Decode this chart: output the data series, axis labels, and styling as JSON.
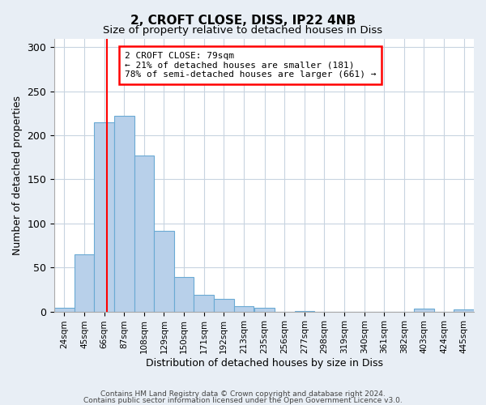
{
  "title": "2, CROFT CLOSE, DISS, IP22 4NB",
  "subtitle": "Size of property relative to detached houses in Diss",
  "xlabel": "Distribution of detached houses by size in Diss",
  "ylabel": "Number of detached properties",
  "bin_labels": [
    "24sqm",
    "45sqm",
    "66sqm",
    "87sqm",
    "108sqm",
    "129sqm",
    "150sqm",
    "171sqm",
    "192sqm",
    "213sqm",
    "235sqm",
    "256sqm",
    "277sqm",
    "298sqm",
    "319sqm",
    "340sqm",
    "361sqm",
    "382sqm",
    "403sqm",
    "424sqm",
    "445sqm"
  ],
  "bin_edges": [
    24,
    45,
    66,
    87,
    108,
    129,
    150,
    171,
    192,
    213,
    235,
    256,
    277,
    298,
    319,
    340,
    361,
    382,
    403,
    424,
    445
  ],
  "bar_heights": [
    4,
    65,
    215,
    222,
    177,
    92,
    39,
    19,
    14,
    6,
    4,
    0,
    1,
    0,
    0,
    0,
    0,
    0,
    3,
    0,
    2
  ],
  "bar_color": "#b8d0ea",
  "bar_edge_color": "#6aaad4",
  "ylim": [
    0,
    310
  ],
  "yticks": [
    0,
    50,
    100,
    150,
    200,
    250,
    300
  ],
  "red_line_x": 79,
  "annotation_title": "2 CROFT CLOSE: 79sqm",
  "annotation_line1": "← 21% of detached houses are smaller (181)",
  "annotation_line2": "78% of semi-detached houses are larger (661) →",
  "footer_line1": "Contains HM Land Registry data © Crown copyright and database right 2024.",
  "footer_line2": "Contains public sector information licensed under the Open Government Licence v3.0.",
  "background_color": "#e8eef5",
  "plot_bg_color": "#ffffff",
  "grid_color": "#c8d4e0"
}
